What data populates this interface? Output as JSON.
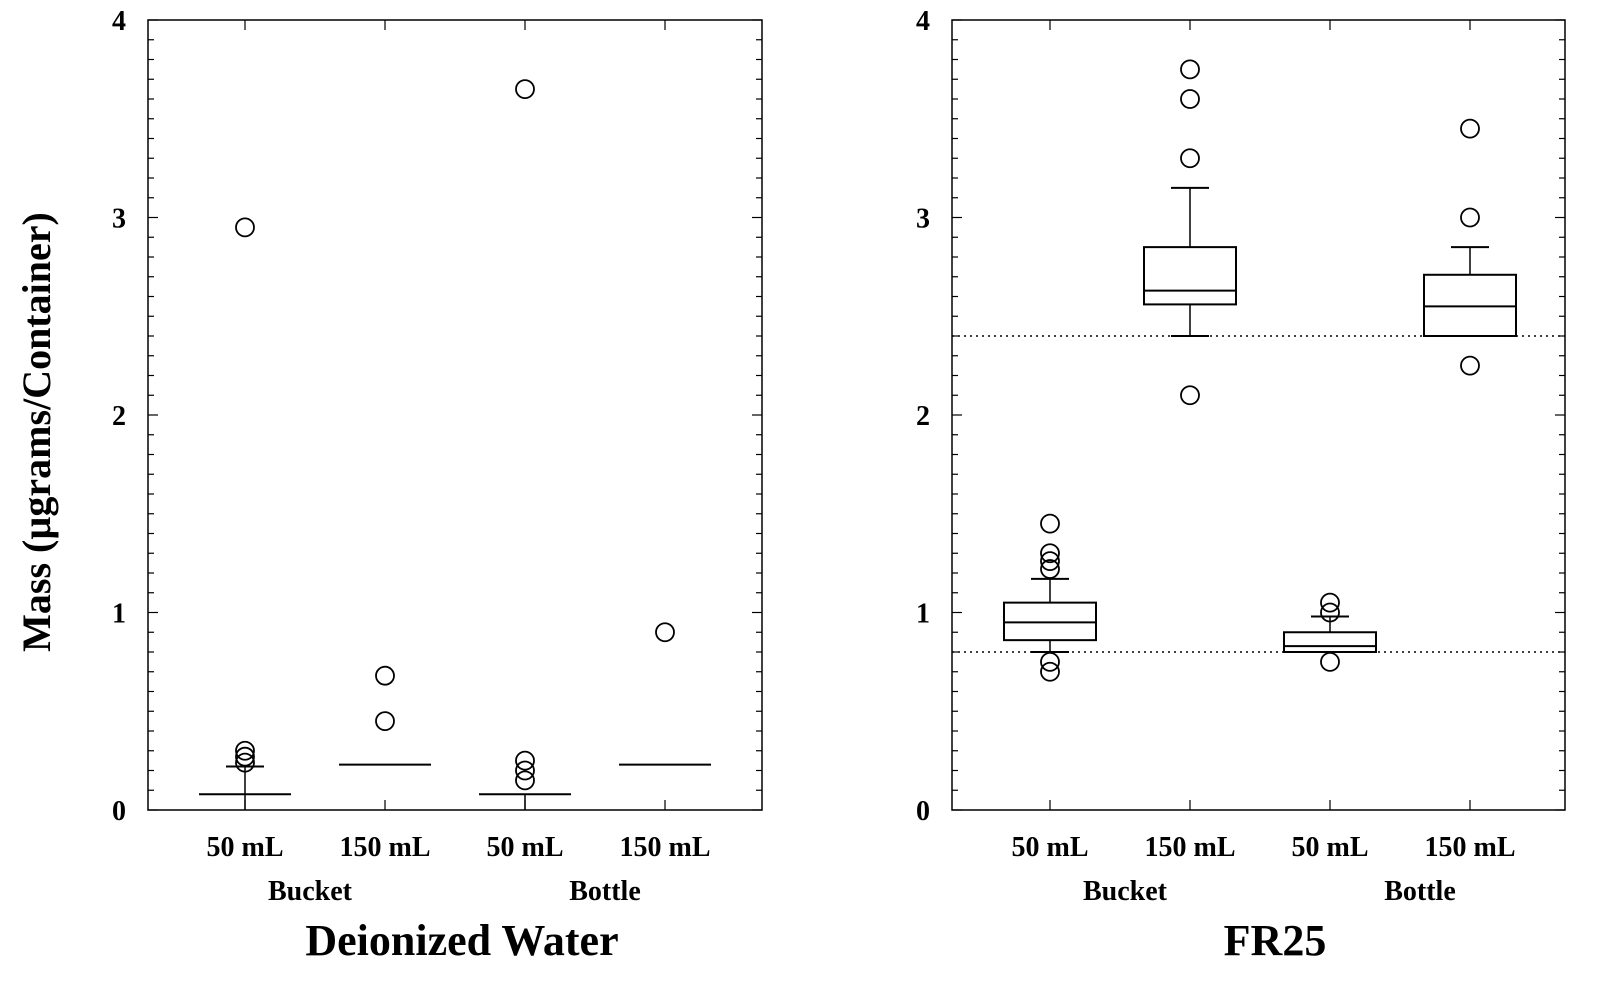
{
  "chart_data": [
    {
      "type": "boxplot",
      "title": "Deionized Water",
      "ylabel": "Mass (µgrams/Container)",
      "ylim": [
        0,
        4
      ],
      "yticks": [
        "0",
        "1",
        "2",
        "3",
        "4"
      ],
      "categories": [
        "50 mL",
        "150 mL",
        "50 mL",
        "150 mL"
      ],
      "groups": [
        "Bucket",
        "Bottle"
      ],
      "reference_lines": [],
      "boxes": [
        {
          "category": "50 mL",
          "group": "Bucket",
          "whisker_low": 0.0,
          "q1": 0.08,
          "median": 0.08,
          "q3": 0.08,
          "whisker_high": 0.22,
          "outliers": [
            2.95,
            0.3,
            0.27,
            0.24
          ]
        },
        {
          "category": "150 mL",
          "group": "Bucket",
          "whisker_low": 0.23,
          "q1": 0.23,
          "median": 0.23,
          "q3": 0.23,
          "whisker_high": 0.23,
          "outliers": [
            0.68,
            0.45
          ]
        },
        {
          "category": "50 mL",
          "group": "Bottle",
          "whisker_low": 0.0,
          "q1": 0.08,
          "median": 0.08,
          "q3": 0.08,
          "whisker_high": 0.08,
          "outliers": [
            3.65,
            0.25,
            0.2,
            0.15
          ]
        },
        {
          "category": "150 mL",
          "group": "Bottle",
          "whisker_low": 0.23,
          "q1": 0.23,
          "median": 0.23,
          "q3": 0.23,
          "whisker_high": 0.23,
          "outliers": [
            0.9
          ]
        }
      ]
    },
    {
      "type": "boxplot",
      "title": "FR25",
      "ylabel": "",
      "ylim": [
        0,
        4
      ],
      "yticks": [
        "0",
        "1",
        "2",
        "3",
        "4"
      ],
      "categories": [
        "50 mL",
        "150 mL",
        "50 mL",
        "150 mL"
      ],
      "groups": [
        "Bucket",
        "Bottle"
      ],
      "reference_lines": [
        0.8,
        2.4
      ],
      "boxes": [
        {
          "category": "50 mL",
          "group": "Bucket",
          "whisker_low": 0.8,
          "q1": 0.86,
          "median": 0.95,
          "q3": 1.05,
          "whisker_high": 1.17,
          "outliers": [
            1.45,
            1.3,
            1.26,
            1.22,
            0.75,
            0.7
          ]
        },
        {
          "category": "150 mL",
          "group": "Bucket",
          "whisker_low": 2.4,
          "q1": 2.56,
          "median": 2.63,
          "q3": 2.85,
          "whisker_high": 3.15,
          "outliers": [
            3.75,
            3.6,
            3.3,
            2.1
          ]
        },
        {
          "category": "50 mL",
          "group": "Bottle",
          "whisker_low": 0.8,
          "q1": 0.8,
          "median": 0.83,
          "q3": 0.9,
          "whisker_high": 0.98,
          "outliers": [
            1.05,
            1.0,
            0.75
          ]
        },
        {
          "category": "150 mL",
          "group": "Bottle",
          "whisker_low": 2.4,
          "q1": 2.4,
          "median": 2.55,
          "q3": 2.71,
          "whisker_high": 2.85,
          "outliers": [
            3.45,
            3.0,
            2.25
          ]
        }
      ]
    }
  ]
}
